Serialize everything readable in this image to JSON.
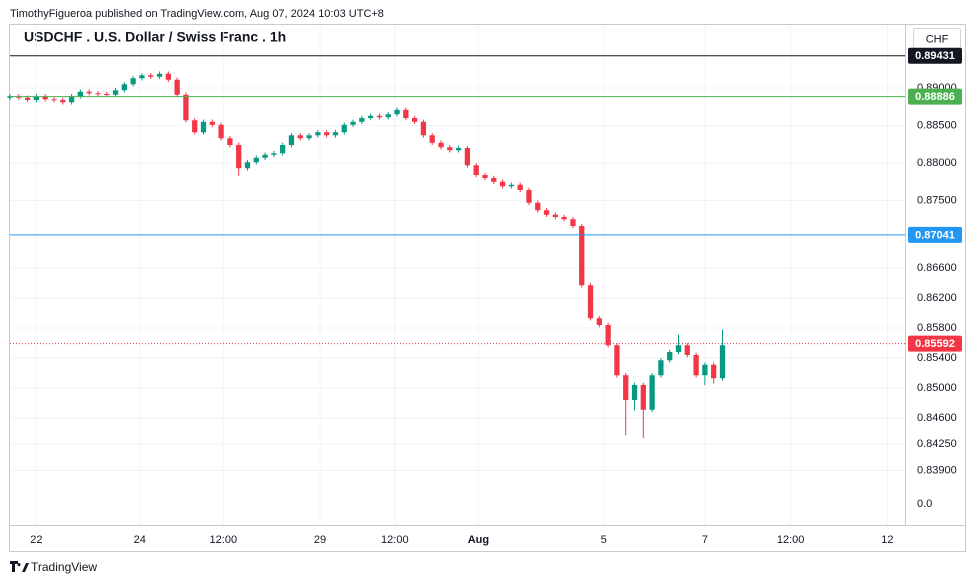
{
  "header": {
    "published": "TimothyFigueroa published on TradingView.com, Aug 07, 2024 10:03 UTC+8",
    "brand": "TradingView"
  },
  "chart_data": {
    "type": "candlestick",
    "title": "USDCHF . U.S. Dollar / Swiss Franc . 1h",
    "currency": "CHF",
    "scale_bottom_text": "0.0",
    "up_color": "#089981",
    "down_color": "#f23645",
    "grid": true,
    "xlim": [
      0,
      407
    ],
    "xticks": [
      {
        "value": 12,
        "label": "22"
      },
      {
        "value": 59,
        "label": "24"
      },
      {
        "value": 97,
        "label": "12:00"
      },
      {
        "value": 141,
        "label": "29"
      },
      {
        "value": 175,
        "label": "12:00"
      },
      {
        "value": 213,
        "label": "Aug"
      },
      {
        "value": 270,
        "label": "5"
      },
      {
        "value": 316,
        "label": "7"
      },
      {
        "value": 355,
        "label": "12:00"
      },
      {
        "value": 399,
        "label": "12"
      }
    ],
    "ylim": [
      0.83173,
      0.89827
    ],
    "yticks": [
      {
        "value": 0.89,
        "label": "0.89000"
      },
      {
        "value": 0.885,
        "label": "0.88500"
      },
      {
        "value": 0.88,
        "label": "0.88000"
      },
      {
        "value": 0.875,
        "label": "0.87500"
      },
      {
        "value": 0.866,
        "label": "0.86600"
      },
      {
        "value": 0.862,
        "label": "0.86200"
      },
      {
        "value": 0.858,
        "label": "0.85800"
      },
      {
        "value": 0.854,
        "label": "0.85400"
      },
      {
        "value": 0.85,
        "label": "0.85000"
      },
      {
        "value": 0.846,
        "label": "0.84600"
      },
      {
        "value": 0.8425,
        "label": "0.84250"
      },
      {
        "value": 0.839,
        "label": "0.83900"
      }
    ],
    "levels": [
      {
        "value": 0.89431,
        "color": "#131722",
        "dotted": false
      },
      {
        "value": 0.88886,
        "color": "#4caf50",
        "dotted": false
      },
      {
        "value": 0.87041,
        "color": "#2196f3",
        "dotted": false
      },
      {
        "value": 0.85592,
        "color": "#f23645",
        "dotted": true
      }
    ],
    "x": [
      0,
      4,
      8,
      12,
      16,
      20,
      24,
      28,
      32,
      36,
      40,
      44,
      48,
      52,
      56,
      60,
      64,
      68,
      72,
      76,
      80,
      84,
      88,
      92,
      96,
      100,
      104,
      108,
      112,
      116,
      120,
      124,
      128,
      132,
      136,
      140,
      144,
      148,
      152,
      156,
      160,
      164,
      168,
      172,
      176,
      180,
      184,
      188,
      192,
      196,
      200,
      204,
      208,
      212,
      216,
      220,
      224,
      228,
      232,
      236,
      240,
      244,
      248,
      252,
      256,
      260,
      264,
      268,
      272,
      276,
      280,
      284,
      288,
      292,
      296,
      300,
      304,
      308,
      312,
      316,
      320,
      324
    ],
    "open": [
      0.8887,
      0.8889,
      0.8887,
      0.8884,
      0.8889,
      0.8885,
      0.8884,
      0.8881,
      0.8889,
      0.8895,
      0.8893,
      0.8892,
      0.8891,
      0.8897,
      0.8905,
      0.8913,
      0.8917,
      0.8915,
      0.8919,
      0.8911,
      0.8891,
      0.8857,
      0.8841,
      0.8855,
      0.8851,
      0.8833,
      0.8824,
      0.8793,
      0.8801,
      0.8807,
      0.8811,
      0.8813,
      0.8824,
      0.8837,
      0.8833,
      0.8837,
      0.8841,
      0.8837,
      0.8841,
      0.8851,
      0.8855,
      0.886,
      0.8863,
      0.8861,
      0.8865,
      0.8871,
      0.886,
      0.8855,
      0.8837,
      0.8827,
      0.8821,
      0.8817,
      0.882,
      0.8797,
      0.8784,
      0.878,
      0.8775,
      0.8769,
      0.8771,
      0.8764,
      0.8747,
      0.8737,
      0.8731,
      0.8728,
      0.8725,
      0.8716,
      0.8637,
      0.8593,
      0.8584,
      0.8557,
      0.8517,
      0.8484,
      0.8504,
      0.8471,
      0.8517,
      0.8537,
      0.8548,
      0.8557,
      0.8544,
      0.8517,
      0.8531,
      0.8513
    ],
    "high": [
      0.8892,
      0.8892,
      0.889,
      0.8892,
      0.8892,
      0.8888,
      0.8887,
      0.8892,
      0.8898,
      0.8898,
      0.8896,
      0.8895,
      0.89,
      0.8908,
      0.8916,
      0.892,
      0.892,
      0.8922,
      0.8922,
      0.8914,
      0.8894,
      0.886,
      0.8858,
      0.8858,
      0.8854,
      0.8836,
      0.8827,
      0.8804,
      0.881,
      0.8814,
      0.8816,
      0.8827,
      0.884,
      0.884,
      0.884,
      0.8844,
      0.8844,
      0.8844,
      0.8854,
      0.8858,
      0.8863,
      0.8866,
      0.8866,
      0.8868,
      0.8874,
      0.8874,
      0.8863,
      0.8858,
      0.884,
      0.883,
      0.8824,
      0.8823,
      0.8823,
      0.88,
      0.8787,
      0.8783,
      0.8778,
      0.8774,
      0.8774,
      0.8767,
      0.875,
      0.874,
      0.8734,
      0.8731,
      0.8728,
      0.8719,
      0.864,
      0.8596,
      0.8587,
      0.856,
      0.852,
      0.8507,
      0.8507,
      0.852,
      0.854,
      0.8551,
      0.8571,
      0.856,
      0.8547,
      0.8534,
      0.8534,
      0.8578
    ],
    "low": [
      0.8884,
      0.8884,
      0.8881,
      0.8881,
      0.8882,
      0.8881,
      0.8878,
      0.8878,
      0.8886,
      0.889,
      0.8889,
      0.8888,
      0.8888,
      0.8894,
      0.8902,
      0.891,
      0.8912,
      0.8912,
      0.8908,
      0.8888,
      0.8854,
      0.8838,
      0.8838,
      0.8848,
      0.883,
      0.8821,
      0.8783,
      0.879,
      0.8798,
      0.8804,
      0.8808,
      0.881,
      0.8821,
      0.883,
      0.883,
      0.8834,
      0.8834,
      0.8834,
      0.8838,
      0.8848,
      0.8852,
      0.8857,
      0.8858,
      0.8858,
      0.8862,
      0.8857,
      0.8852,
      0.8834,
      0.8824,
      0.8818,
      0.8814,
      0.8814,
      0.8794,
      0.8781,
      0.8777,
      0.8772,
      0.8766,
      0.8766,
      0.8761,
      0.8744,
      0.8734,
      0.8728,
      0.8725,
      0.8722,
      0.8713,
      0.8634,
      0.859,
      0.8581,
      0.8554,
      0.8514,
      0.8437,
      0.847,
      0.8433,
      0.8468,
      0.8514,
      0.8534,
      0.8545,
      0.8541,
      0.8514,
      0.8504,
      0.8506,
      0.851
    ],
    "close": [
      0.8889,
      0.8887,
      0.8884,
      0.8889,
      0.8885,
      0.8884,
      0.8881,
      0.8889,
      0.8895,
      0.8893,
      0.8892,
      0.8891,
      0.8897,
      0.8905,
      0.8913,
      0.8917,
      0.8915,
      0.8919,
      0.8911,
      0.8891,
      0.8857,
      0.8841,
      0.8855,
      0.8851,
      0.8833,
      0.8824,
      0.8793,
      0.8801,
      0.8807,
      0.8811,
      0.8813,
      0.8824,
      0.8837,
      0.8833,
      0.8837,
      0.8841,
      0.8837,
      0.8841,
      0.8851,
      0.8855,
      0.886,
      0.8863,
      0.8861,
      0.8865,
      0.8871,
      0.886,
      0.8855,
      0.8837,
      0.8827,
      0.8821,
      0.8817,
      0.882,
      0.8797,
      0.8784,
      0.878,
      0.8775,
      0.8769,
      0.8771,
      0.8764,
      0.8747,
      0.8737,
      0.8731,
      0.8728,
      0.8725,
      0.8716,
      0.8637,
      0.8593,
      0.8584,
      0.8557,
      0.8517,
      0.8484,
      0.8504,
      0.8471,
      0.8517,
      0.8537,
      0.8548,
      0.8557,
      0.8544,
      0.8517,
      0.8531,
      0.8513,
      0.8557
    ]
  }
}
